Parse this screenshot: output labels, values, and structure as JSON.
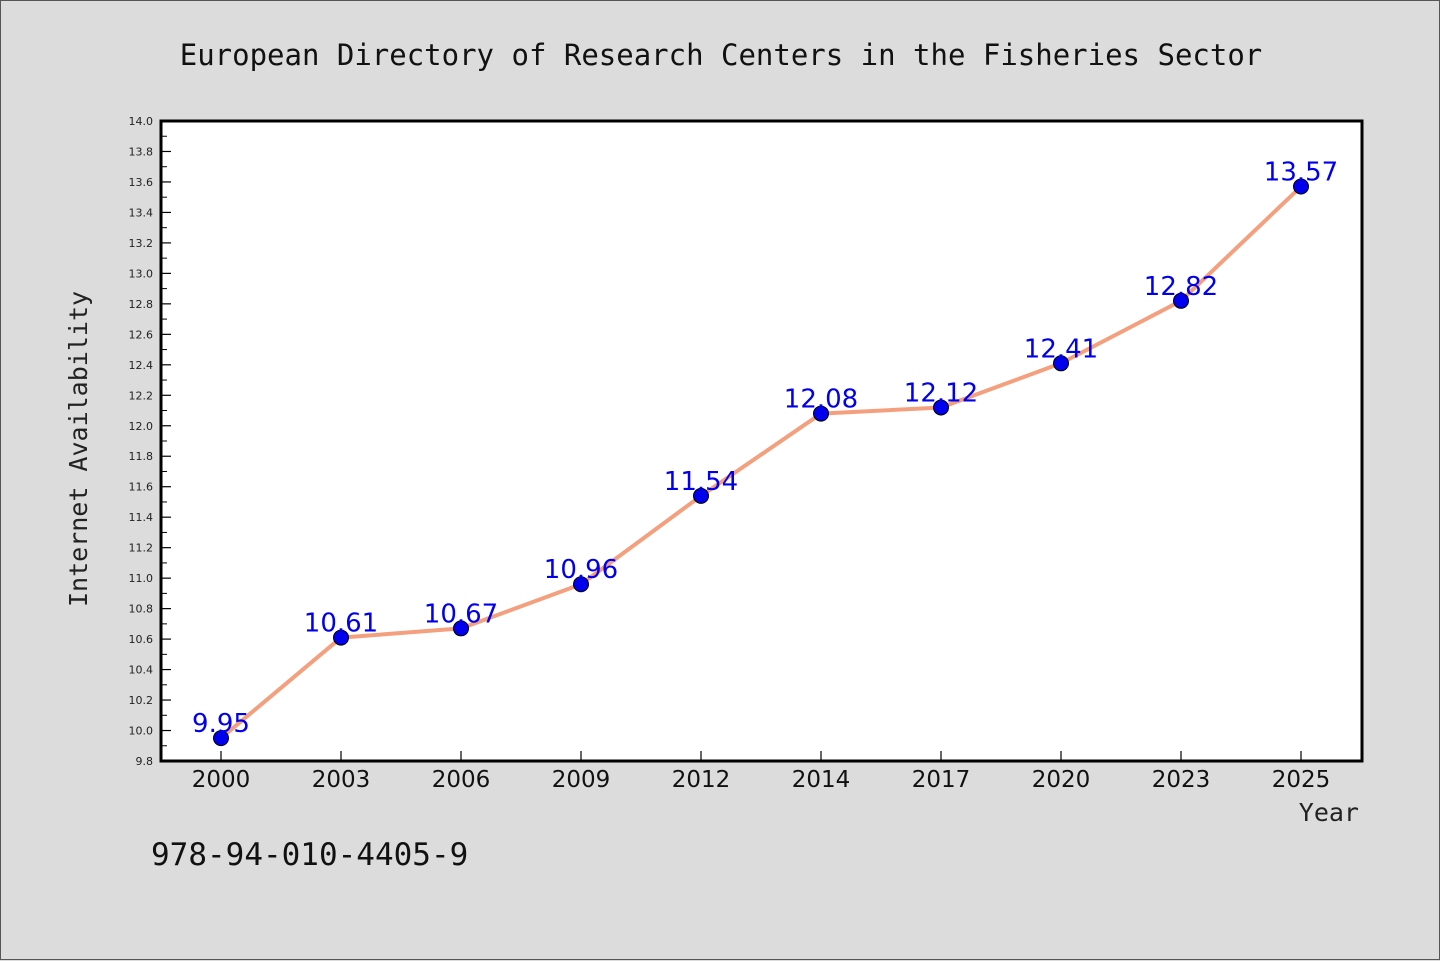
{
  "figure": {
    "background_color": "#dcdcdc",
    "plot_background_color": "#ffffff",
    "isbn": "978-94-010-4405-9"
  },
  "chart_data": {
    "type": "line",
    "title": "European Directory of Research Centers in the Fisheries Sector",
    "xlabel": "Year",
    "ylabel": "Internet Availability",
    "categories": [
      "2000",
      "2003",
      "2006",
      "2009",
      "2012",
      "2014",
      "2017",
      "2020",
      "2023",
      "2025"
    ],
    "series": [
      {
        "values": [
          9.95,
          10.61,
          10.67,
          10.96,
          11.54,
          12.08,
          12.12,
          12.41,
          12.82,
          13.57
        ],
        "data_labels": [
          "9.95",
          "10.61",
          "10.67",
          "10.96",
          "11.54",
          "12.08",
          "12.12",
          "12.41",
          "12.82",
          "13.57"
        ],
        "line_color": "#f4a07e",
        "marker_color": "#0000ee",
        "label_color": "#0000ee"
      }
    ],
    "ylim": [
      9.8,
      14.0
    ],
    "yticks": [
      "9.8",
      "10.0",
      "10.2",
      "10.4",
      "10.6",
      "10.8",
      "11.0",
      "11.2",
      "11.4",
      "11.6",
      "11.8",
      "12.0",
      "12.2",
      "12.4",
      "12.6",
      "12.8",
      "13.0",
      "13.2",
      "13.4",
      "13.6",
      "13.8",
      "14.0"
    ],
    "grid": false,
    "legend": "none"
  }
}
